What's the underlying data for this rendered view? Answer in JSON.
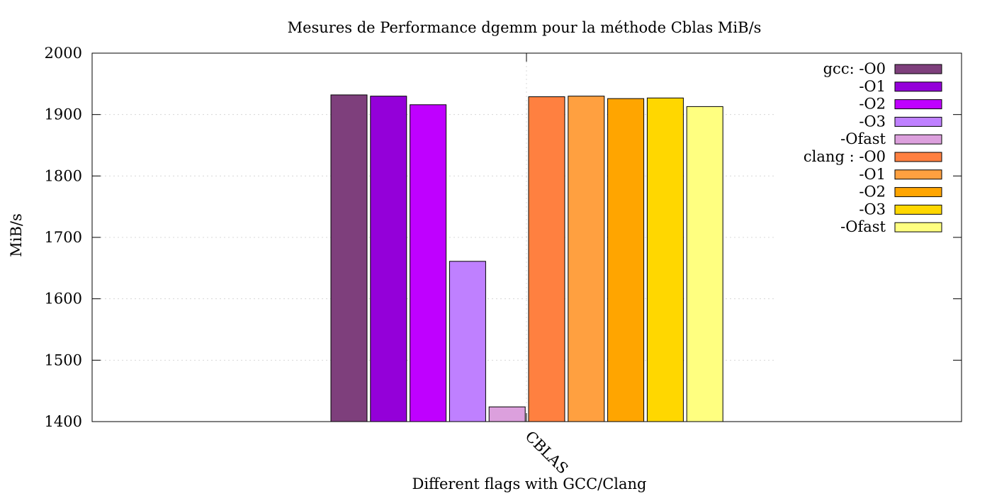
{
  "chart_data": {
    "type": "bar",
    "title": "Mesures de Performance dgemm pour la méthode Cblas MiB/s",
    "xlabel": "Different flags with GCC/Clang",
    "ylabel": "MiB/s",
    "ylim": [
      1400,
      2000
    ],
    "yticks": [
      "1400",
      "1500",
      "1600",
      "1700",
      "1800",
      "1900",
      "2000"
    ],
    "categories": [
      "CBLAS"
    ],
    "grid": true,
    "legend_position": "top-right",
    "series": [
      {
        "name": "gcc: -O0",
        "values": [
          1932
        ],
        "color": "#7e3f7c"
      },
      {
        "name": "-O1",
        "values": [
          1930
        ],
        "color": "#9400d9"
      },
      {
        "name": "-O2",
        "values": [
          1916
        ],
        "color": "#bf00ff"
      },
      {
        "name": "-O3",
        "values": [
          1661
        ],
        "color": "#bf80ff"
      },
      {
        "name": "-Ofast",
        "values": [
          1424
        ],
        "color": "#dca0dd"
      },
      {
        "name": "clang : -O0",
        "values": [
          1929
        ],
        "color": "#ff8040"
      },
      {
        "name": "-O1",
        "values": [
          1930
        ],
        "color": "#ffa040"
      },
      {
        "name": "-O2",
        "values": [
          1926
        ],
        "color": "#ffa500"
      },
      {
        "name": "-O3",
        "values": [
          1927
        ],
        "color": "#ffd700"
      },
      {
        "name": "-Ofast",
        "values": [
          1913
        ],
        "color": "#ffff80"
      }
    ]
  }
}
